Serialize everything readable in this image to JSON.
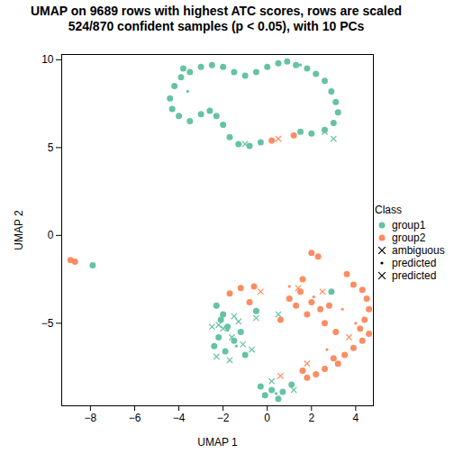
{
  "chart_data": {
    "type": "scatter",
    "title": "UMAP on 9689 rows with highest ATC scores, rows are scaled",
    "subtitle": "524/870 confident samples (p < 0.05), with 10 PCs",
    "x_label": "UMAP 1",
    "y_label": "UMAP 2",
    "xlim": [
      -9.3,
      4.8
    ],
    "ylim": [
      -9.7,
      10.3
    ],
    "xticks": [
      -8,
      -6,
      -4,
      -2,
      0,
      2,
      4
    ],
    "yticks": [
      -5,
      0,
      5,
      10
    ],
    "legend": "right",
    "legend_title": "Class",
    "series": [
      {
        "name": "group1",
        "color": "#66C2A5",
        "marker": "circle",
        "x": [
          -3.5,
          -3.0,
          -2.5,
          -2.0,
          -1.5,
          -1.0,
          -0.5,
          0,
          0.5,
          0.9,
          1.3,
          1.8,
          2.2,
          2.6,
          2.9,
          3.1,
          3.2,
          3.0,
          2.6,
          2.0,
          1.5,
          -3.9,
          -4.2,
          -4.4,
          -4.3,
          -4.0,
          -3.5,
          -3.0,
          -2.6,
          -2.3,
          -2.0,
          -1.7,
          -1.3,
          -0.8,
          -0.3,
          -3.8,
          -2.3,
          -2.0,
          -1.8,
          -2.2,
          -1.5,
          -1.2,
          -2.4,
          -1.9,
          -1.0,
          -2.1,
          -0.3,
          0.2,
          0.7,
          1.1,
          -0.1,
          0.5,
          2.9,
          -7.9,
          -0.5
        ],
        "y": [
          9.3,
          9.6,
          9.7,
          9.6,
          9.3,
          9.1,
          9.3,
          9.6,
          9.8,
          9.9,
          9.7,
          9.5,
          9.2,
          8.8,
          8.2,
          7.6,
          7.0,
          6.4,
          6.0,
          5.8,
          5.9,
          9.0,
          8.5,
          7.8,
          7.2,
          6.8,
          6.5,
          6.9,
          7.1,
          6.8,
          6.3,
          5.6,
          5.2,
          5.1,
          5.3,
          9.5,
          -4.0,
          -4.5,
          -5.2,
          -5.8,
          -6.0,
          -5.5,
          -6.3,
          -6.6,
          -6.8,
          -4.8,
          -8.6,
          -8.8,
          -8.9,
          -8.5,
          -9.1,
          -9.3,
          -3.2,
          -1.7,
          -4.3
        ]
      },
      {
        "name": "group2",
        "color": "#FC8D62",
        "marker": "circle",
        "x": [
          -8.9,
          -8.7,
          0.2,
          1.2,
          2.0,
          2.3,
          1.6,
          -1.2,
          -0.6,
          -1.7,
          3.6,
          3.9,
          4.3,
          4.5,
          4.6,
          4.4,
          4.2,
          4.6,
          4.3,
          3.9,
          3.5,
          3.2,
          3.0,
          2.6,
          2.2,
          1.8,
          1.6,
          2.0,
          2.4,
          1.8,
          2.8,
          1.0,
          1.3,
          2.6,
          3.1,
          0.6,
          1.5,
          -0.8
        ],
        "y": [
          -1.4,
          -1.5,
          5.4,
          5.7,
          -1.0,
          -1.2,
          -2.5,
          -3.0,
          -2.9,
          -3.3,
          -2.2,
          -2.8,
          -3.1,
          -3.6,
          -4.2,
          -4.8,
          -5.3,
          -5.6,
          -6.0,
          -6.4,
          -6.8,
          -7.3,
          -7.0,
          -7.6,
          -7.9,
          -8.1,
          -7.7,
          -3.8,
          -4.2,
          -4.5,
          -4.0,
          -3.6,
          -4.0,
          -5.0,
          -5.5,
          -4.8,
          -3.2,
          -3.8
        ]
      },
      {
        "name": "ambiguous",
        "marker": "cross",
        "colors": [
          "#66C2A5",
          "#66C2A5",
          "#FC8D62",
          "#FC8D62"
        ],
        "x": [
          -1.3,
          -2.2,
          0.6,
          0.5
        ],
        "y": [
          -4.9,
          -5.1,
          -8.0,
          5.5
        ]
      },
      {
        "name": "predicted",
        "marker": "dot",
        "colors": [
          "#66C2A5",
          "#66C2A5",
          "#66C2A5",
          "#66C2A5",
          "#66C2A5",
          "#FC8D62",
          "#FC8D62",
          "#FC8D62",
          "#FC8D62",
          "#FC8D62"
        ],
        "x": [
          -1.8,
          -1.4,
          0.4,
          -3.6,
          1.5,
          3.4,
          2.1,
          1.0,
          4.0,
          2.7
        ],
        "y": [
          -5.4,
          -6.3,
          -9.0,
          8.2,
          9.7,
          -4.2,
          -3.5,
          -2.9,
          -5.0,
          -6.5
        ]
      },
      {
        "name": "predicted",
        "marker": "cross",
        "colors": [
          "#66C2A5",
          "#66C2A5",
          "#66C2A5",
          "#66C2A5",
          "#66C2A5",
          "#66C2A5",
          "#66C2A5",
          "#66C2A5",
          "#66C2A5",
          "#66C2A5",
          "#66C2A5",
          "#66C2A5",
          "#66C2A5",
          "#66C2A5",
          "#66C2A5",
          "#FC8D62",
          "#FC8D62",
          "#FC8D62",
          "#FC8D62",
          "#FC8D62"
        ],
        "x": [
          -2.0,
          -1.6,
          -1.1,
          -2.3,
          -1.7,
          -0.7,
          -2.5,
          2.6,
          3.0,
          -1.0,
          0.2,
          1.2,
          -1.5,
          -0.5,
          0.5,
          1.4,
          2.5,
          -0.3,
          1.8,
          3.7
        ],
        "y": [
          -5.3,
          -5.8,
          -6.2,
          -6.9,
          -7.1,
          -6.5,
          -5.2,
          5.9,
          5.5,
          5.2,
          -8.3,
          -8.8,
          -4.6,
          -4.7,
          -4.5,
          -3.0,
          -3.2,
          -3.2,
          -7.3,
          -5.8
        ]
      }
    ]
  }
}
